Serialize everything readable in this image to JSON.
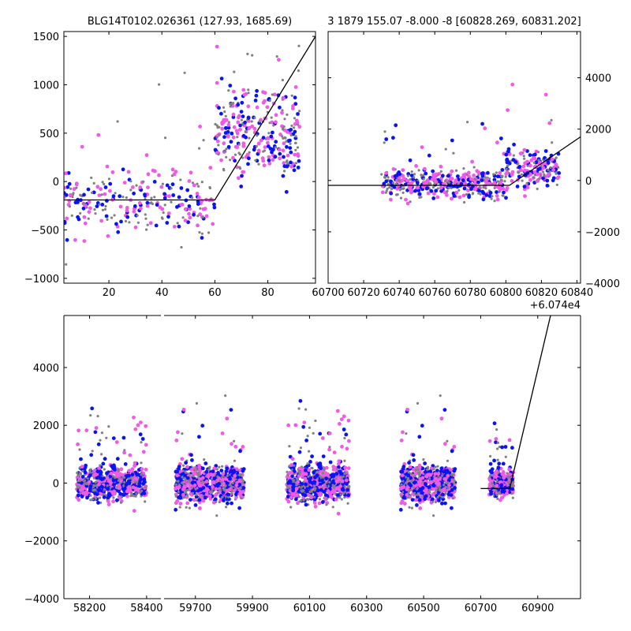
{
  "chart_data": [
    {
      "type": "scatter",
      "title": "BLG14T0102.026361 (127.93, 1685.69)",
      "xlim": [
        3,
        98
      ],
      "ylim": [
        -1050,
        1550
      ],
      "xticks": [
        20,
        40,
        60,
        80
      ],
      "yticks": [
        -1000,
        -500,
        0,
        500,
        1000,
        1500
      ],
      "colors": {
        "gray": "#808080",
        "blue": "#0a14f0",
        "magenta": "#f05ae6"
      },
      "line": {
        "x": [
          3,
          60,
          98
        ],
        "y": [
          -190,
          -190,
          1500
        ]
      },
      "clusters": [
        {
          "x": [
            3,
            60
          ],
          "y": -200,
          "spread": 300,
          "n": 260
        },
        {
          "x": [
            60,
            92
          ],
          "y": 500,
          "spread": 400,
          "n": 320
        }
      ]
    },
    {
      "type": "scatter",
      "title": "3 1879 155.07 -8.000 -8 [60828.269, 60831.202]",
      "xlim": [
        60700,
        60842
      ],
      "ylim": [
        -4000,
        5800
      ],
      "xticks": [
        60700,
        60720,
        60740,
        60760,
        60780,
        60800,
        60820,
        60840
      ],
      "xtick_labels": [
        "60700",
        "60720",
        "60740",
        "60760",
        "60780",
        "60800",
        "60820",
        "60840"
      ],
      "x_offset_label": "+6.074e4",
      "yticks": [
        -4000,
        -2000,
        0,
        2000,
        4000
      ],
      "y_axis_side": "right",
      "line": {
        "x": [
          60700,
          60802,
          60842
        ],
        "y": [
          -190,
          -190,
          1700
        ]
      },
      "clusters": [
        {
          "x": [
            60730,
            60800
          ],
          "y": -100,
          "spread": 500,
          "n": 420
        },
        {
          "x": [
            60800,
            60830
          ],
          "y": 500,
          "spread": 700,
          "n": 200
        }
      ]
    },
    {
      "type": "scatter",
      "title": "",
      "xlim": [
        58110,
        61050
      ],
      "ylim": [
        -4000,
        5800
      ],
      "segments": [
        [
          58110,
          58450
        ],
        [
          59590,
          61050
        ]
      ],
      "xticks": [
        58200,
        58400,
        59700,
        59900,
        60100,
        60300,
        60500,
        60700,
        60900
      ],
      "yticks": [
        -4000,
        -2000,
        0,
        2000,
        4000
      ],
      "line": {
        "x": [
          60700,
          60802,
          60945
        ],
        "y": [
          -190,
          -190,
          5800
        ]
      },
      "clusters": [
        {
          "x": [
            58155,
            58400
          ],
          "y": 0,
          "spread": 500,
          "n": 700
        },
        {
          "x": [
            59630,
            59870
          ],
          "y": 0,
          "spread": 550,
          "n": 800
        },
        {
          "x": [
            60020,
            60240
          ],
          "y": 0,
          "spread": 550,
          "n": 800
        },
        {
          "x": [
            60420,
            60610
          ],
          "y": 0,
          "spread": 550,
          "n": 700
        },
        {
          "x": [
            60730,
            60815
          ],
          "y": 0,
          "spread": 400,
          "n": 350
        }
      ]
    }
  ]
}
